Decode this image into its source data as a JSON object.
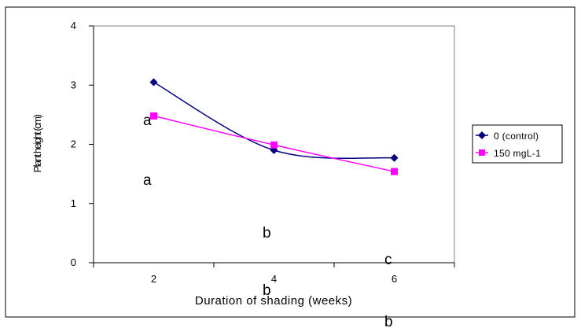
{
  "chart_data": {
    "type": "line",
    "x": [
      2,
      4,
      6
    ],
    "x_tick_labels": [
      "2",
      "4",
      "6"
    ],
    "y_tick_labels": [
      "0",
      "1",
      "2",
      "3",
      "4"
    ],
    "ylim": [
      0,
      4
    ],
    "xlabel": "Duration of shading (weeks)",
    "ylabel": "Plant height (cm)",
    "series": [
      {
        "name": "0 (control)",
        "values": [
          3.05,
          1.9,
          1.77
        ],
        "color": "#000080",
        "marker": "diamond"
      },
      {
        "name": "150 mgL-1",
        "values": [
          2.48,
          1.99,
          1.54
        ],
        "color": "#ff00ff",
        "marker": "square"
      }
    ],
    "significance_letters": [
      "a",
      "a",
      "b",
      "b",
      "c",
      "b"
    ],
    "legend_position": "right",
    "grid": false
  }
}
